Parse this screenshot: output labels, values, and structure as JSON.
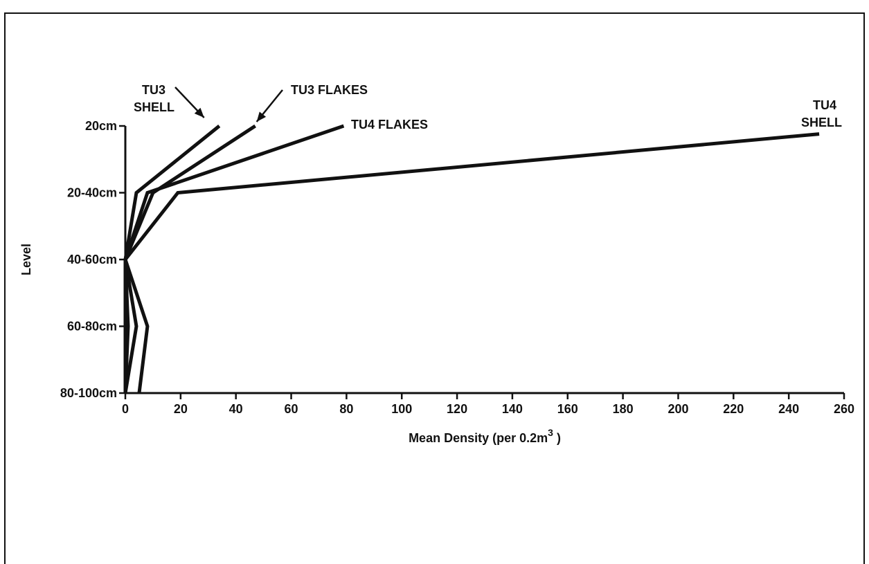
{
  "chart_data": {
    "type": "line",
    "orientation": "horizontal-profile",
    "xlabel": "Mean Density (per 0.2m",
    "xlabel_sup": "3",
    "xlabel_suffix": " )",
    "ylabel": "Level",
    "xlim": [
      0,
      260
    ],
    "xticks": [
      0,
      20,
      40,
      60,
      80,
      100,
      120,
      140,
      160,
      180,
      200,
      220,
      240,
      260
    ],
    "levels": [
      "20cm",
      "20-40cm",
      "40-60cm",
      "60-80cm",
      "80-100cm"
    ],
    "grid": false,
    "series": [
      {
        "name": "TU3 SHELL",
        "label_lines": [
          "TU3",
          "SHELL"
        ],
        "level_positions": [
          0,
          1,
          2,
          3,
          4
        ],
        "values": [
          34,
          4,
          0,
          4,
          0
        ]
      },
      {
        "name": "TU3 FLAKES",
        "label_lines": [
          "TU3 FLAKES"
        ],
        "level_positions": [
          0,
          1,
          2,
          3,
          4
        ],
        "values": [
          47,
          10,
          0,
          1,
          0
        ]
      },
      {
        "name": "TU4 FLAKES",
        "label_lines": [
          "TU4 FLAKES"
        ],
        "level_positions": [
          0,
          1,
          2,
          3,
          4
        ],
        "values": [
          79,
          8,
          0,
          8,
          5
        ]
      },
      {
        "name": "TU4 SHELL",
        "label_lines": [
          "TU4",
          "SHELL"
        ],
        "level_positions": [
          0.12,
          1,
          2,
          3,
          4
        ],
        "values": [
          251,
          19,
          0,
          0,
          0
        ]
      }
    ]
  }
}
